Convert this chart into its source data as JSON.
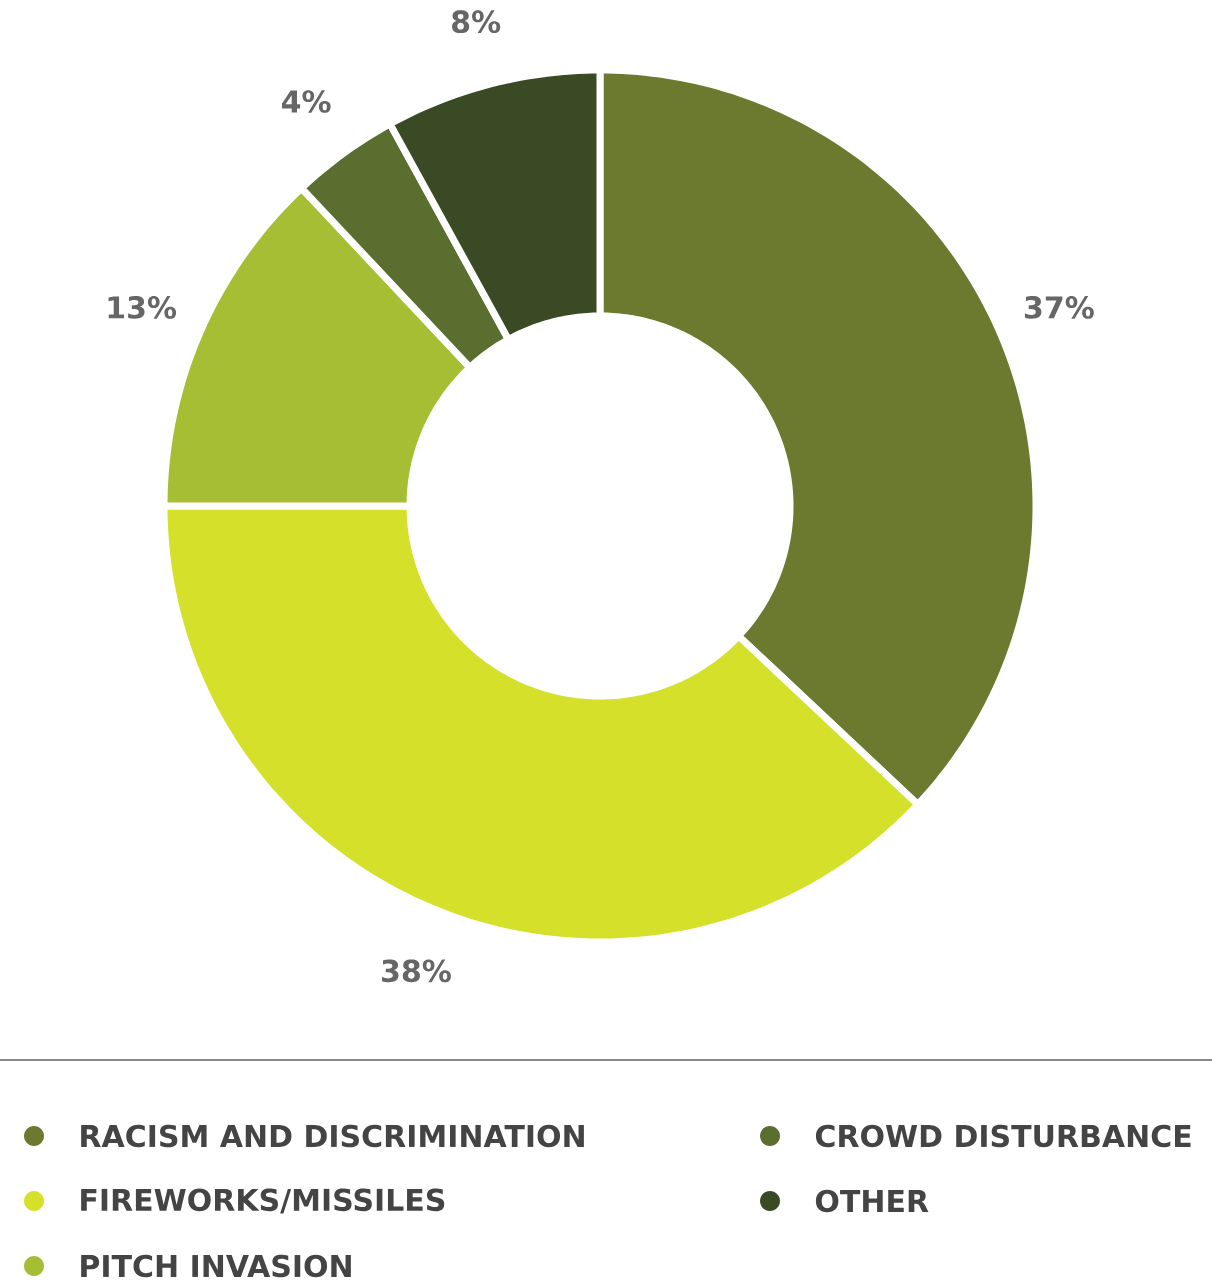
{
  "chart_data": {
    "type": "donut",
    "categories": [
      "RACISM AND DISCRIMINATION",
      "FIREWORKS/MISSILES",
      "PITCH INVASION",
      "CROWD DISTURBANCE",
      "OTHER"
    ],
    "values": [
      37,
      38,
      13,
      4,
      8
    ],
    "value_labels": [
      "37%",
      "38%",
      "13%",
      "4%",
      "8%"
    ],
    "colors": [
      "#6b7a2e",
      "#d4e02a",
      "#a6be34",
      "#5a6e30",
      "#3a4a24"
    ],
    "legend": "bottom"
  }
}
